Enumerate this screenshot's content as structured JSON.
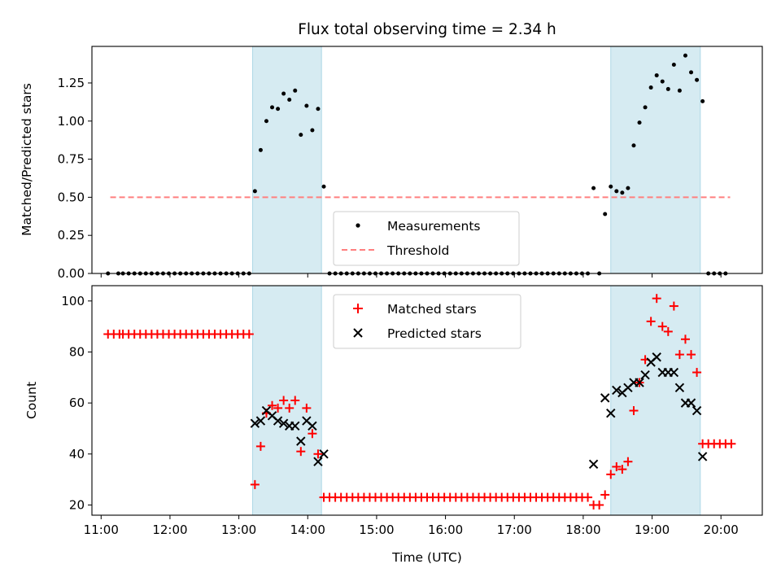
{
  "chart_data": [
    {
      "type": "scatter",
      "title": "Flux total observing time = 2.34 h",
      "xlabel": "",
      "ylabel": "Matched/Predicted stars",
      "xlim": [
        "10:52",
        "20:36"
      ],
      "ylim": [
        0,
        1.49
      ],
      "yticks": [
        "0.00",
        "0.25",
        "0.50",
        "0.75",
        "1.00",
        "1.25"
      ],
      "legend": "lower-center",
      "shaded_intervals": [
        [
          "13:12",
          "14:12"
        ],
        [
          "18:24",
          "19:42"
        ]
      ],
      "threshold": {
        "name": "Threshold",
        "value": 0.5,
        "x_range": [
          "11:08",
          "20:08"
        ],
        "color": "#ff7f7f"
      },
      "series": [
        {
          "name": "Measurements",
          "marker": "dot",
          "color": "#000000",
          "points": [
            [
              "11:06",
              0
            ],
            [
              "11:15",
              0
            ],
            [
              "11:19",
              0
            ],
            [
              "11:24",
              0
            ],
            [
              "11:29",
              0
            ],
            [
              "11:34",
              0
            ],
            [
              "11:39",
              0
            ],
            [
              "11:44",
              0
            ],
            [
              "11:49",
              0
            ],
            [
              "11:54",
              0
            ],
            [
              "11:59",
              0
            ],
            [
              "12:04",
              0
            ],
            [
              "12:09",
              0
            ],
            [
              "12:14",
              0
            ],
            [
              "12:19",
              0
            ],
            [
              "12:24",
              0
            ],
            [
              "12:29",
              0
            ],
            [
              "12:34",
              0
            ],
            [
              "12:39",
              0
            ],
            [
              "12:44",
              0
            ],
            [
              "12:49",
              0
            ],
            [
              "12:54",
              0
            ],
            [
              "12:59",
              0
            ],
            [
              "13:04",
              0
            ],
            [
              "13:09",
              0
            ],
            [
              "13:14",
              0.54
            ],
            [
              "13:19",
              0.81
            ],
            [
              "13:24",
              1.0
            ],
            [
              "13:29",
              1.09
            ],
            [
              "13:34",
              1.08
            ],
            [
              "13:39",
              1.18
            ],
            [
              "13:44",
              1.14
            ],
            [
              "13:49",
              1.2
            ],
            [
              "13:54",
              0.91
            ],
            [
              "13:59",
              1.1
            ],
            [
              "14:04",
              0.94
            ],
            [
              "14:09",
              1.08
            ],
            [
              "14:14",
              0.57
            ],
            [
              "14:19",
              0
            ],
            [
              "14:24",
              0
            ],
            [
              "14:29",
              0
            ],
            [
              "14:34",
              0
            ],
            [
              "14:39",
              0
            ],
            [
              "14:44",
              0
            ],
            [
              "14:49",
              0
            ],
            [
              "14:54",
              0
            ],
            [
              "14:59",
              0
            ],
            [
              "15:04",
              0
            ],
            [
              "15:09",
              0
            ],
            [
              "15:14",
              0
            ],
            [
              "15:19",
              0
            ],
            [
              "15:24",
              0
            ],
            [
              "15:29",
              0
            ],
            [
              "15:34",
              0
            ],
            [
              "15:39",
              0
            ],
            [
              "15:44",
              0
            ],
            [
              "15:49",
              0
            ],
            [
              "15:54",
              0
            ],
            [
              "15:59",
              0
            ],
            [
              "16:04",
              0
            ],
            [
              "16:09",
              0
            ],
            [
              "16:14",
              0
            ],
            [
              "16:19",
              0
            ],
            [
              "16:24",
              0
            ],
            [
              "16:29",
              0
            ],
            [
              "16:34",
              0
            ],
            [
              "16:39",
              0
            ],
            [
              "16:44",
              0
            ],
            [
              "16:49",
              0
            ],
            [
              "16:54",
              0
            ],
            [
              "16:59",
              0
            ],
            [
              "17:04",
              0
            ],
            [
              "17:09",
              0
            ],
            [
              "17:14",
              0
            ],
            [
              "17:19",
              0
            ],
            [
              "17:24",
              0
            ],
            [
              "17:29",
              0
            ],
            [
              "17:34",
              0
            ],
            [
              "17:39",
              0
            ],
            [
              "17:44",
              0
            ],
            [
              "17:49",
              0
            ],
            [
              "17:54",
              0
            ],
            [
              "17:59",
              0
            ],
            [
              "18:04",
              0
            ],
            [
              "18:09",
              0.56
            ],
            [
              "18:14",
              0
            ],
            [
              "18:19",
              0.39
            ],
            [
              "18:24",
              0.57
            ],
            [
              "18:29",
              0.54
            ],
            [
              "18:34",
              0.53
            ],
            [
              "18:39",
              0.56
            ],
            [
              "18:44",
              0.84
            ],
            [
              "18:49",
              0.99
            ],
            [
              "18:54",
              1.09
            ],
            [
              "18:59",
              1.22
            ],
            [
              "19:04",
              1.3
            ],
            [
              "19:09",
              1.26
            ],
            [
              "19:14",
              1.21
            ],
            [
              "19:19",
              1.37
            ],
            [
              "19:24",
              1.2
            ],
            [
              "19:29",
              1.43
            ],
            [
              "19:34",
              1.32
            ],
            [
              "19:39",
              1.27
            ],
            [
              "19:44",
              1.13
            ],
            [
              "19:49",
              0
            ],
            [
              "19:54",
              0
            ],
            [
              "19:59",
              0
            ],
            [
              "20:04",
              0
            ]
          ]
        }
      ]
    },
    {
      "type": "scatter",
      "title": "",
      "xlabel": "Time (UTC)",
      "ylabel": "Count",
      "xlim": [
        "10:52",
        "20:36"
      ],
      "ylim": [
        16,
        106
      ],
      "yticks": [
        "20",
        "40",
        "60",
        "80",
        "100"
      ],
      "xticks": [
        "11:00",
        "12:00",
        "13:00",
        "14:00",
        "15:00",
        "16:00",
        "17:00",
        "18:00",
        "19:00",
        "20:00"
      ],
      "legend": "upper-center",
      "shaded_intervals": [
        [
          "13:12",
          "14:12"
        ],
        [
          "18:24",
          "19:42"
        ]
      ],
      "series": [
        {
          "name": "Matched stars",
          "marker": "plus",
          "color": "#ff0000",
          "points": [
            [
              "11:06",
              87
            ],
            [
              "11:11",
              87
            ],
            [
              "11:16",
              87
            ],
            [
              "11:19",
              87
            ],
            [
              "11:24",
              87
            ],
            [
              "11:29",
              87
            ],
            [
              "11:34",
              87
            ],
            [
              "11:39",
              87
            ],
            [
              "11:44",
              87
            ],
            [
              "11:49",
              87
            ],
            [
              "11:54",
              87
            ],
            [
              "11:59",
              87
            ],
            [
              "12:04",
              87
            ],
            [
              "12:09",
              87
            ],
            [
              "12:14",
              87
            ],
            [
              "12:19",
              87
            ],
            [
              "12:24",
              87
            ],
            [
              "12:29",
              87
            ],
            [
              "12:34",
              87
            ],
            [
              "12:39",
              87
            ],
            [
              "12:44",
              87
            ],
            [
              "12:49",
              87
            ],
            [
              "12:54",
              87
            ],
            [
              "12:59",
              87
            ],
            [
              "13:04",
              87
            ],
            [
              "13:09",
              87
            ],
            [
              "13:14",
              28
            ],
            [
              "13:19",
              43
            ],
            [
              "13:24",
              56
            ],
            [
              "13:29",
              59
            ],
            [
              "13:34",
              58
            ],
            [
              "13:39",
              61
            ],
            [
              "13:44",
              58
            ],
            [
              "13:49",
              61
            ],
            [
              "13:54",
              41
            ],
            [
              "13:59",
              58
            ],
            [
              "14:04",
              48
            ],
            [
              "14:09",
              40
            ],
            [
              "14:14",
              23
            ],
            [
              "14:19",
              23
            ],
            [
              "14:24",
              23
            ],
            [
              "14:29",
              23
            ],
            [
              "14:34",
              23
            ],
            [
              "14:39",
              23
            ],
            [
              "14:44",
              23
            ],
            [
              "14:49",
              23
            ],
            [
              "14:54",
              23
            ],
            [
              "14:59",
              23
            ],
            [
              "15:04",
              23
            ],
            [
              "15:09",
              23
            ],
            [
              "15:14",
              23
            ],
            [
              "15:19",
              23
            ],
            [
              "15:24",
              23
            ],
            [
              "15:29",
              23
            ],
            [
              "15:34",
              23
            ],
            [
              "15:39",
              23
            ],
            [
              "15:44",
              23
            ],
            [
              "15:49",
              23
            ],
            [
              "15:54",
              23
            ],
            [
              "15:59",
              23
            ],
            [
              "16:04",
              23
            ],
            [
              "16:09",
              23
            ],
            [
              "16:14",
              23
            ],
            [
              "16:19",
              23
            ],
            [
              "16:24",
              23
            ],
            [
              "16:29",
              23
            ],
            [
              "16:34",
              23
            ],
            [
              "16:39",
              23
            ],
            [
              "16:44",
              23
            ],
            [
              "16:49",
              23
            ],
            [
              "16:54",
              23
            ],
            [
              "16:59",
              23
            ],
            [
              "17:04",
              23
            ],
            [
              "17:09",
              23
            ],
            [
              "17:14",
              23
            ],
            [
              "17:19",
              23
            ],
            [
              "17:24",
              23
            ],
            [
              "17:29",
              23
            ],
            [
              "17:34",
              23
            ],
            [
              "17:39",
              23
            ],
            [
              "17:44",
              23
            ],
            [
              "17:49",
              23
            ],
            [
              "17:54",
              23
            ],
            [
              "17:59",
              23
            ],
            [
              "18:04",
              23
            ],
            [
              "18:09",
              20
            ],
            [
              "18:14",
              20
            ],
            [
              "18:19",
              24
            ],
            [
              "18:24",
              32
            ],
            [
              "18:29",
              35
            ],
            [
              "18:34",
              34
            ],
            [
              "18:39",
              37
            ],
            [
              "18:44",
              57
            ],
            [
              "18:49",
              68
            ],
            [
              "18:54",
              77
            ],
            [
              "18:59",
              92
            ],
            [
              "19:04",
              101
            ],
            [
              "19:09",
              90
            ],
            [
              "19:14",
              88
            ],
            [
              "19:19",
              98
            ],
            [
              "19:24",
              79
            ],
            [
              "19:29",
              85
            ],
            [
              "19:34",
              79
            ],
            [
              "19:39",
              72
            ],
            [
              "19:44",
              44
            ],
            [
              "19:49",
              44
            ],
            [
              "19:54",
              44
            ],
            [
              "19:59",
              44
            ],
            [
              "20:04",
              44
            ],
            [
              "20:09",
              44
            ]
          ]
        },
        {
          "name": "Predicted stars",
          "marker": "x",
          "color": "#000000",
          "points": [
            [
              "13:14",
              52
            ],
            [
              "13:19",
              53
            ],
            [
              "13:24",
              57
            ],
            [
              "13:29",
              55
            ],
            [
              "13:34",
              53
            ],
            [
              "13:39",
              52
            ],
            [
              "13:44",
              51
            ],
            [
              "13:49",
              51
            ],
            [
              "13:54",
              45
            ],
            [
              "13:59",
              53
            ],
            [
              "14:04",
              51
            ],
            [
              "14:09",
              37
            ],
            [
              "14:14",
              40
            ],
            [
              "18:09",
              36
            ],
            [
              "18:19",
              62
            ],
            [
              "18:24",
              56
            ],
            [
              "18:29",
              65
            ],
            [
              "18:34",
              64
            ],
            [
              "18:39",
              66
            ],
            [
              "18:44",
              68
            ],
            [
              "18:49",
              68
            ],
            [
              "18:54",
              71
            ],
            [
              "18:59",
              76
            ],
            [
              "19:04",
              78
            ],
            [
              "19:09",
              72
            ],
            [
              "19:14",
              72
            ],
            [
              "19:19",
              72
            ],
            [
              "19:24",
              66
            ],
            [
              "19:29",
              60
            ],
            [
              "19:34",
              60
            ],
            [
              "19:39",
              57
            ],
            [
              "19:44",
              39
            ]
          ]
        }
      ]
    }
  ]
}
